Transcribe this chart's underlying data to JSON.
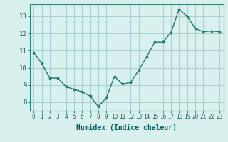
{
  "x": [
    0,
    1,
    2,
    3,
    4,
    5,
    6,
    7,
    8,
    9,
    10,
    11,
    12,
    13,
    14,
    15,
    16,
    17,
    18,
    19,
    20,
    21,
    22,
    23
  ],
  "y": [
    10.9,
    10.25,
    9.4,
    9.4,
    8.9,
    8.75,
    8.6,
    8.35,
    7.75,
    8.25,
    9.5,
    9.05,
    9.15,
    9.85,
    10.65,
    11.5,
    11.5,
    12.05,
    13.4,
    13.0,
    12.3,
    12.1,
    12.15,
    12.1
  ],
  "xlabel": "Humidex (Indice chaleur)",
  "ylim": [
    7.5,
    13.7
  ],
  "xlim": [
    -0.5,
    23.5
  ],
  "yticks": [
    8,
    9,
    10,
    11,
    12,
    13
  ],
  "xticks": [
    0,
    1,
    2,
    3,
    4,
    5,
    6,
    7,
    8,
    9,
    10,
    11,
    12,
    13,
    14,
    15,
    16,
    17,
    18,
    19,
    20,
    21,
    22,
    23
  ],
  "xtick_labels": [
    "0",
    "1",
    "2",
    "3",
    "4",
    "5",
    "6",
    "7",
    "8",
    "9",
    "10",
    "11",
    "12",
    "13",
    "14",
    "15",
    "16",
    "17",
    "18",
    "19",
    "20",
    "21",
    "22",
    "23"
  ],
  "line_color": "#1a7a6e",
  "marker_color": "#1a7a6e",
  "bg_color": "#d8f0ee",
  "grid_color": "#a8cece",
  "axis_color": "#2a8a7a",
  "tick_color": "#1a6060",
  "label_color": "#006060"
}
